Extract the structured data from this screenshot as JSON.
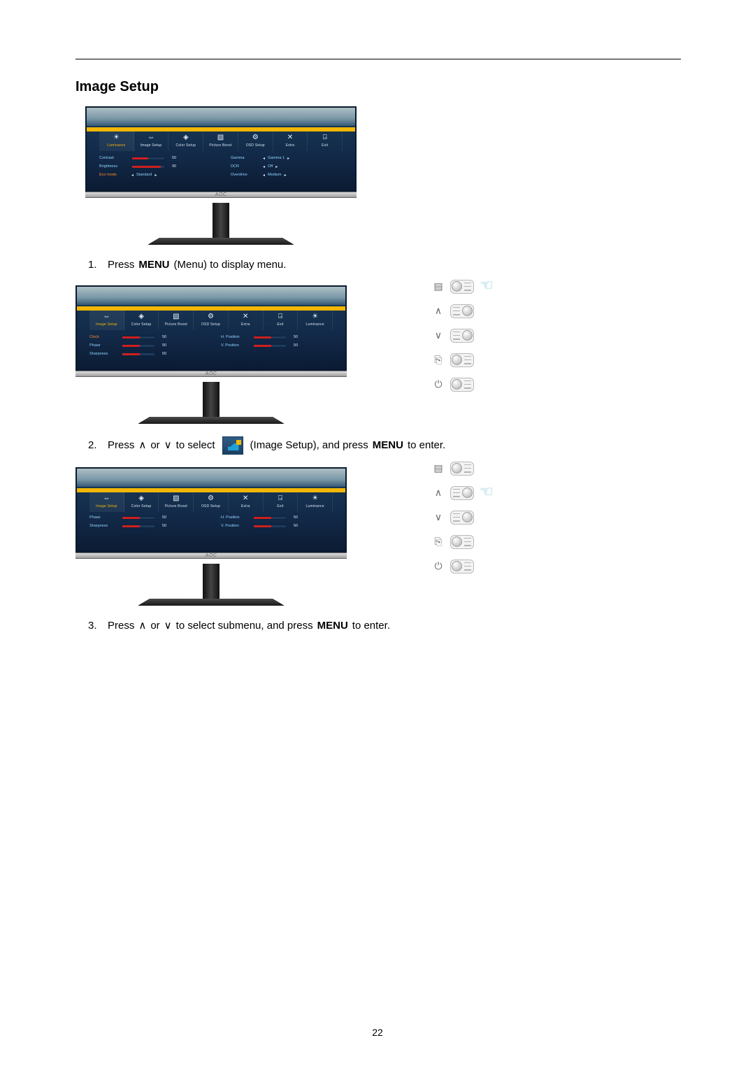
{
  "page": {
    "number": "22"
  },
  "title": "Image Setup",
  "brand_logo": "AOC",
  "tabs": {
    "luminance": {
      "label": "Luminance"
    },
    "image_setup": {
      "label": "Image Setup"
    },
    "color_setup": {
      "label": "Color Setup"
    },
    "picture_boost": {
      "label": "Picture Boost"
    },
    "osd_setup": {
      "label": "OSD Setup"
    },
    "extra": {
      "label": "Extra"
    },
    "exit": {
      "label": "Exit"
    }
  },
  "fig1": {
    "left": {
      "rows": [
        {
          "label": "Contrast",
          "value": "50",
          "fill_pct": 50
        },
        {
          "label": "Brightness",
          "value": "90",
          "fill_pct": 90
        },
        {
          "label": "Eco mode",
          "state": "Standard",
          "arrows": true,
          "orange": true
        }
      ]
    },
    "right": {
      "rows": [
        {
          "label": "Gamma",
          "state": "Gamma 1",
          "arrows": true
        },
        {
          "label": "DCR",
          "state": "Off",
          "arrows": true
        },
        {
          "label": "Overdrive",
          "state": "Medium",
          "arrows": true
        }
      ]
    }
  },
  "fig2": {
    "left": {
      "rows": [
        {
          "label": "Clock",
          "value": "50",
          "fill_pct": 55,
          "orange": true
        },
        {
          "label": "Phase",
          "value": "50",
          "fill_pct": 55
        },
        {
          "label": "Sharpness",
          "value": "50",
          "fill_pct": 55
        }
      ]
    },
    "right": {
      "rows": [
        {
          "label": "H. Position",
          "value": "50",
          "fill_pct": 55
        },
        {
          "label": "V. Position",
          "value": "50",
          "fill_pct": 55
        }
      ]
    }
  },
  "fig3": {
    "left": {
      "rows": [
        {
          "label": "Phase",
          "value": "50",
          "fill_pct": 55
        },
        {
          "label": "Sharpness",
          "value": "50",
          "fill_pct": 55
        }
      ]
    },
    "right": {
      "rows": [
        {
          "label": "H. Position",
          "value": "50",
          "fill_pct": 55
        },
        {
          "label": "V. Position",
          "value": "50",
          "fill_pct": 55
        }
      ]
    },
    "top_bar_fill_pct": 55
  },
  "steps": {
    "s1": {
      "num": "1.",
      "a": "Press ",
      "b": "MENU",
      "c": " (Menu) to display menu."
    },
    "s2": {
      "num": "2.",
      "a": "Press ",
      "up": "∧",
      "or": "or",
      "dn": "∨",
      "b": "  to select ",
      "c": " (Image Setup), and press ",
      "d": "MENU",
      "e": " to enter."
    },
    "s3": {
      "num": "3.",
      "a": "Press ",
      "up": "∧",
      "or": " or",
      "dn": "∨",
      "b": "   to select submenu, and press ",
      "c": "MENU",
      "d": " to enter."
    }
  },
  "legend_symbols": {
    "menu": "▤",
    "up": "∧",
    "down": "∨",
    "auto": "⎘",
    "power": "⏻"
  }
}
